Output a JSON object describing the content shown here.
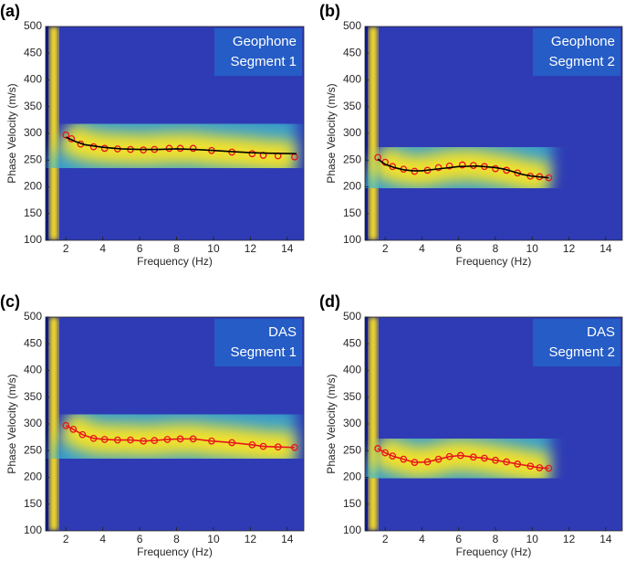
{
  "chart_data": [
    {
      "type": "scatter",
      "panel_label": "(a)",
      "title": [
        "Geophone",
        "Segment 1"
      ],
      "xlabel": "Frequency (Hz)",
      "ylabel": "Phase Velocity (m/s)",
      "xlim": [
        0.9,
        14.9
      ],
      "ylim": [
        100,
        500
      ],
      "xticks": [
        2,
        4,
        6,
        8,
        10,
        12,
        14
      ],
      "yticks": [
        100,
        150,
        200,
        250,
        300,
        350,
        400,
        450,
        500
      ],
      "series": [
        {
          "color": "#e8141c",
          "line": false,
          "x": [
            2.0,
            2.3,
            2.8,
            3.5,
            4.1,
            4.8,
            5.5,
            6.2,
            6.8,
            7.6,
            8.2,
            8.9,
            9.9,
            11.0,
            12.1,
            12.7,
            13.5,
            14.4
          ],
          "values": [
            297,
            290,
            280,
            275,
            272,
            271,
            270,
            269,
            270,
            272,
            272,
            272,
            268,
            265,
            262,
            259,
            258,
            256
          ]
        },
        {
          "color": "#000000",
          "line": true,
          "x": [
            2.0,
            2.5,
            3.0,
            4.0,
            5.0,
            6.0,
            7.0,
            8.0,
            9.0,
            10.0,
            11.0,
            12.0,
            13.0,
            14.5
          ],
          "values": [
            293,
            285,
            279,
            274,
            271,
            270,
            270,
            271,
            270,
            268,
            266,
            264,
            263,
            262
          ]
        }
      ]
    },
    {
      "type": "scatter",
      "panel_label": "(b)",
      "title": [
        "Geophone",
        "Segment 2"
      ],
      "xlabel": "Frequency (Hz)",
      "ylabel": "Phase Velocity (m/s)",
      "xlim": [
        0.9,
        14.9
      ],
      "ylim": [
        100,
        500
      ],
      "xticks": [
        2,
        4,
        6,
        8,
        10,
        12,
        14
      ],
      "yticks": [
        100,
        150,
        200,
        250,
        300,
        350,
        400,
        450,
        500
      ],
      "series": [
        {
          "color": "#e8141c",
          "line": false,
          "x": [
            1.6,
            2.0,
            2.4,
            3.0,
            3.6,
            4.3,
            4.9,
            5.5,
            6.2,
            6.8,
            7.4,
            8.0,
            8.6,
            9.2,
            9.9,
            10.4,
            10.9
          ],
          "values": [
            255,
            246,
            238,
            233,
            229,
            231,
            236,
            239,
            241,
            240,
            238,
            234,
            231,
            226,
            220,
            219,
            217
          ]
        },
        {
          "color": "#000000",
          "line": true,
          "x": [
            1.6,
            2.0,
            2.5,
            3.0,
            3.5,
            4.0,
            5.0,
            6.0,
            7.0,
            8.0,
            8.5,
            9.0,
            9.5,
            10.0,
            10.9
          ],
          "values": [
            252,
            242,
            236,
            232,
            230,
            230,
            234,
            238,
            239,
            236,
            233,
            228,
            223,
            220,
            217
          ]
        }
      ]
    },
    {
      "type": "scatter",
      "panel_label": "(c)",
      "title": [
        "DAS",
        "Segment 1"
      ],
      "xlabel": "Frequency (Hz)",
      "ylabel": "Phase Velocity (m/s)",
      "xlim": [
        0.9,
        14.9
      ],
      "ylim": [
        100,
        500
      ],
      "xticks": [
        2,
        4,
        6,
        8,
        10,
        12,
        14
      ],
      "yticks": [
        100,
        150,
        200,
        250,
        300,
        350,
        400,
        450,
        500
      ],
      "series": [
        {
          "color": "#e8141c",
          "line": true,
          "x": [
            2.0,
            2.4,
            2.9,
            3.5,
            4.1,
            4.8,
            5.5,
            6.2,
            6.8,
            7.5,
            8.2,
            8.9,
            9.9,
            11.0,
            12.1,
            12.7,
            13.5,
            14.4
          ],
          "values": [
            297,
            290,
            280,
            273,
            271,
            270,
            270,
            268,
            269,
            271,
            272,
            272,
            268,
            265,
            261,
            258,
            257,
            256
          ]
        }
      ]
    },
    {
      "type": "scatter",
      "panel_label": "(d)",
      "title": [
        "DAS",
        "Segment 2"
      ],
      "xlabel": "Frequency (Hz)",
      "ylabel": "Phase Velocity (m/s)",
      "xlim": [
        0.9,
        14.9
      ],
      "ylim": [
        100,
        500
      ],
      "xticks": [
        2,
        4,
        6,
        8,
        10,
        12,
        14
      ],
      "yticks": [
        100,
        150,
        200,
        250,
        300,
        350,
        400,
        450,
        500
      ],
      "series": [
        {
          "color": "#e8141c",
          "line": true,
          "x": [
            1.6,
            2.0,
            2.4,
            3.0,
            3.6,
            4.3,
            4.9,
            5.5,
            6.1,
            6.8,
            7.4,
            8.0,
            8.6,
            9.2,
            9.9,
            10.4,
            10.9
          ],
          "values": [
            254,
            246,
            240,
            234,
            228,
            229,
            234,
            239,
            241,
            238,
            236,
            232,
            229,
            225,
            221,
            218,
            217
          ]
        }
      ]
    }
  ]
}
